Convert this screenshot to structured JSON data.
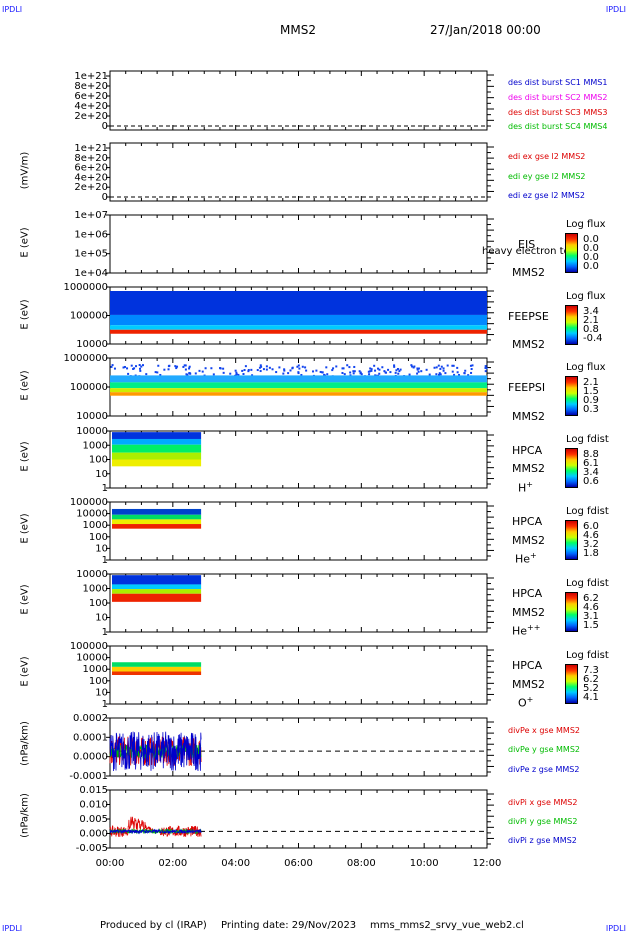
{
  "corner_label": "IPDLI",
  "header": {
    "spacecraft": "MMS2",
    "date": "27/Jan/2018 00:00"
  },
  "footer": {
    "produced_by": "Produced by cl (IRAP)",
    "printing_date": "Printing date: 29/Nov/2023",
    "script": "mms_mms2_srvy_vue_web2.cl"
  },
  "chart_data": [
    {
      "type": "line",
      "panel": "des dist burst",
      "ylabel": "",
      "yticks": [
        "1e+21",
        "8e+20",
        "6e+20",
        "4e+20",
        "2e+20",
        "0"
      ],
      "series": [
        {
          "name": "des dist burst SC1 MMS1",
          "color": "#0000cc"
        },
        {
          "name": "des dist burst SC2 MMS2",
          "color": "#ee00ee"
        },
        {
          "name": "des dist burst SC3 MMS3",
          "color": "#dd0000"
        },
        {
          "name": "des dist burst SC4 MMS4",
          "color": "#00bb00"
        }
      ]
    },
    {
      "type": "line",
      "panel": "edi",
      "ylabel": "(mV/m)",
      "yticks": [
        "1e+21",
        "8e+20",
        "6e+20",
        "4e+20",
        "2e+20",
        "0"
      ],
      "series": [
        {
          "name": "edi ex gse l2 MMS2",
          "color": "#dd0000"
        },
        {
          "name": "edi ey gse l2 MMS2",
          "color": "#00bb00"
        },
        {
          "name": "edi ez gse l2 MMS2",
          "color": "#0000cc"
        }
      ]
    },
    {
      "type": "heatmap",
      "panel": "EIS",
      "ylabel": "E (eV)",
      "yticks": [
        "1e+07",
        "1e+06",
        "1e+05",
        "1e+04"
      ],
      "instrument": "EIS",
      "spacecraft": "MMS2",
      "note": "heavy electron to",
      "colorbar": {
        "title": "Log flux",
        "ticks": [
          "0.0",
          "0.0",
          "0.0",
          "0.0"
        ]
      }
    },
    {
      "type": "heatmap",
      "panel": "FEEPSE",
      "ylabel": "E (eV)",
      "yticks": [
        "1000000",
        "100000",
        "10000"
      ],
      "instrument": "FEEPSE",
      "spacecraft": "MMS2",
      "colorbar": {
        "title": "Log flux",
        "ticks": [
          "3.4",
          "2.1",
          "0.8",
          "-0.4"
        ]
      },
      "time_range_h": [
        0,
        12
      ]
    },
    {
      "type": "heatmap",
      "panel": "FEEPSI",
      "ylabel": "E (eV)",
      "yticks": [
        "1000000",
        "100000",
        "10000"
      ],
      "instrument": "FEEPSI",
      "spacecraft": "MMS2",
      "colorbar": {
        "title": "Log flux",
        "ticks": [
          "2.1",
          "1.5",
          "0.9",
          "0.3"
        ]
      },
      "time_range_h": [
        0,
        12
      ]
    },
    {
      "type": "heatmap",
      "panel": "HPCA H+",
      "ylabel": "E (eV)",
      "yticks": [
        "10000",
        "1000",
        "100",
        "10",
        "1"
      ],
      "instrument": "HPCA",
      "spacecraft": "MMS2",
      "ion": "H",
      "ion_charge": "+",
      "colorbar": {
        "title": "Log fdist",
        "ticks": [
          "8.8",
          "6.1",
          "3.4",
          "0.6"
        ]
      },
      "time_range_h": [
        0,
        2.9
      ]
    },
    {
      "type": "heatmap",
      "panel": "HPCA He+",
      "ylabel": "E (eV)",
      "yticks": [
        "100000",
        "10000",
        "1000",
        "100",
        "10",
        "1"
      ],
      "instrument": "HPCA",
      "spacecraft": "MMS2",
      "ion": "He",
      "ion_charge": "+",
      "colorbar": {
        "title": "Log fdist",
        "ticks": [
          "6.0",
          "4.6",
          "3.2",
          "1.8"
        ]
      },
      "time_range_h": [
        0,
        2.9
      ]
    },
    {
      "type": "heatmap",
      "panel": "HPCA He++",
      "ylabel": "E (eV)",
      "yticks": [
        "10000",
        "1000",
        "100",
        "10",
        "1"
      ],
      "instrument": "HPCA",
      "spacecraft": "MMS2",
      "ion": "He",
      "ion_charge": "++",
      "colorbar": {
        "title": "Log fdist",
        "ticks": [
          "6.2",
          "4.6",
          "3.1",
          "1.5"
        ]
      },
      "time_range_h": [
        0,
        2.9
      ]
    },
    {
      "type": "heatmap",
      "panel": "HPCA O+",
      "ylabel": "E (eV)",
      "yticks": [
        "100000",
        "10000",
        "1000",
        "100",
        "10",
        "1"
      ],
      "instrument": "HPCA",
      "spacecraft": "MMS2",
      "ion": "O",
      "ion_charge": "+",
      "colorbar": {
        "title": "Log fdist",
        "ticks": [
          "7.3",
          "6.2",
          "5.2",
          "4.1"
        ]
      },
      "time_range_h": [
        0,
        2.9
      ]
    },
    {
      "type": "line",
      "panel": "divPe",
      "ylabel": "(nPa/km)",
      "yticks": [
        "0.0002",
        "0.0001",
        "0.0000",
        "-0.0001"
      ],
      "ylim": [
        -0.00015,
        0.0002
      ],
      "series": [
        {
          "name": "divPe x gse MMS2",
          "color": "#dd0000",
          "amp": 0.00012
        },
        {
          "name": "divPe y gse MMS2",
          "color": "#00bb00",
          "amp": 4e-05
        },
        {
          "name": "divPe z gse MMS2",
          "color": "#0000cc",
          "amp": 0.00015
        }
      ],
      "time_range_h": [
        0,
        2.9
      ]
    },
    {
      "type": "line",
      "panel": "divPi",
      "ylabel": "(nPa/km)",
      "yticks": [
        "0.015",
        "0.010",
        "0.005",
        "0.000",
        "-0.005"
      ],
      "ylim": [
        -0.006,
        0.015
      ],
      "series": [
        {
          "name": "divPi x gse MMS2",
          "color": "#dd0000"
        },
        {
          "name": "divPi y gse MMS2",
          "color": "#00bb00"
        },
        {
          "name": "divPi z gse MMS2",
          "color": "#0000cc"
        }
      ],
      "time_range_h": [
        0,
        2.9
      ]
    }
  ],
  "x_axis": {
    "ticks": [
      "00:00",
      "02:00",
      "04:00",
      "06:00",
      "08:00",
      "10:00",
      "12:00"
    ],
    "range_h": [
      0,
      12
    ]
  }
}
